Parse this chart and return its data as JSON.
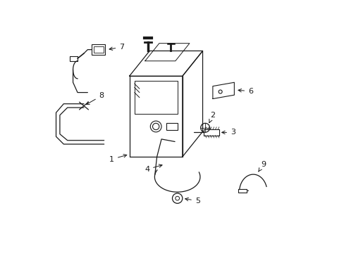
{
  "background_color": "#ffffff",
  "line_color": "#1a1a1a",
  "figsize": [
    4.89,
    3.6
  ],
  "dpi": 100,
  "xlim": [
    0,
    10
  ],
  "ylim": [
    0,
    10
  ]
}
